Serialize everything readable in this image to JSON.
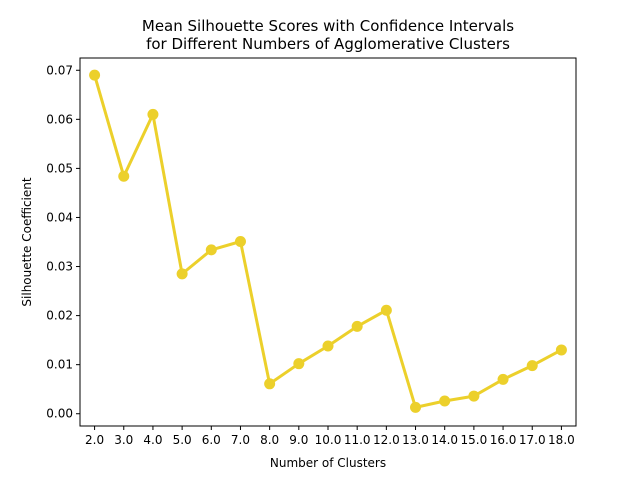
{
  "chart_data": {
    "type": "line",
    "title_line1": "Mean Silhouette Scores with Confidence Intervals",
    "title_line2": "for Different Numbers of Agglomerative Clusters",
    "xlabel": "Number of Clusters",
    "ylabel": "Silhouette Coefficient",
    "categories": [
      "2.0",
      "3.0",
      "4.0",
      "5.0",
      "6.0",
      "7.0",
      "8.0",
      "9.0",
      "10.0",
      "11.0",
      "12.0",
      "13.0",
      "14.0",
      "15.0",
      "16.0",
      "17.0",
      "18.0"
    ],
    "values": [
      0.069,
      0.0484,
      0.061,
      0.0285,
      0.0334,
      0.0351,
      0.0061,
      0.0102,
      0.0138,
      0.0178,
      0.0211,
      0.0013,
      0.0026,
      0.0036,
      0.007,
      0.0098,
      0.013
    ],
    "ylim": [
      -0.0025,
      0.0725
    ],
    "yticks": [
      "0.00",
      "0.01",
      "0.02",
      "0.03",
      "0.04",
      "0.05",
      "0.06",
      "0.07"
    ],
    "ytick_values": [
      0,
      0.01,
      0.02,
      0.03,
      0.04,
      0.05,
      0.06,
      0.07
    ],
    "grid": false,
    "color": "#ecd02b"
  }
}
